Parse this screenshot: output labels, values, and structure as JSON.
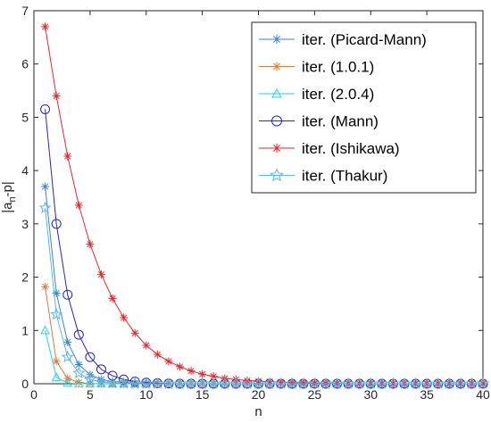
{
  "chart_data": {
    "type": "line",
    "xlabel": "n",
    "ylabel_main": "|a",
    "ylabel_sub": "n",
    "ylabel_tail": "-p|",
    "xlim": [
      0,
      40
    ],
    "ylim": [
      0,
      7
    ],
    "xticks": [
      0,
      5,
      10,
      15,
      20,
      25,
      30,
      35,
      40
    ],
    "yticks": [
      0,
      1,
      2,
      3,
      4,
      5,
      6,
      7
    ],
    "grid": false,
    "legend_position": "top-right",
    "series": [
      {
        "name": "iter. (Picard-Mann)",
        "color": "#3a87c8",
        "marker": "asterisk",
        "x": [
          1,
          2,
          3,
          4,
          5,
          6,
          7,
          8,
          9,
          10,
          11,
          12,
          13,
          14,
          15,
          16,
          17,
          18,
          19,
          20,
          21,
          22,
          23,
          24,
          25,
          26,
          27,
          28,
          29,
          30,
          31,
          32,
          33,
          34,
          35,
          36,
          37,
          38,
          39,
          40
        ],
        "y": [
          3.7,
          1.7,
          0.78,
          0.36,
          0.17,
          0.08,
          0.04,
          0.02,
          0.01,
          0.005,
          0,
          0,
          0,
          0,
          0,
          0,
          0,
          0,
          0,
          0,
          0,
          0,
          0,
          0,
          0,
          0,
          0,
          0,
          0,
          0,
          0,
          0,
          0,
          0,
          0,
          0,
          0,
          0,
          0,
          0
        ]
      },
      {
        "name": "iter. (1.0.1)",
        "color": "#e07b39",
        "marker": "asterisk",
        "x": [
          1,
          2,
          3,
          4,
          5,
          6,
          7,
          8,
          9,
          10,
          11,
          12,
          13,
          14,
          15,
          16,
          17,
          18,
          19,
          20,
          21,
          22,
          23,
          24,
          25,
          26,
          27,
          28,
          29,
          30,
          31,
          32,
          33,
          34,
          35,
          36,
          37,
          38,
          39,
          40
        ],
        "y": [
          1.82,
          0.42,
          0.1,
          0.025,
          0.006,
          0,
          0,
          0,
          0,
          0,
          0,
          0,
          0,
          0,
          0,
          0,
          0,
          0,
          0,
          0,
          0,
          0,
          0,
          0,
          0,
          0,
          0,
          0,
          0,
          0,
          0,
          0,
          0,
          0,
          0,
          0,
          0,
          0,
          0,
          0
        ]
      },
      {
        "name": "iter. (2.0.4)",
        "color": "#22d3e6",
        "marker": "triangle",
        "x": [
          1,
          2,
          3,
          4,
          5,
          6,
          7,
          8,
          9,
          10,
          11,
          12,
          13,
          14,
          15,
          16,
          17,
          18,
          19,
          20,
          21,
          22,
          23,
          24,
          25,
          26,
          27,
          28,
          29,
          30,
          31,
          32,
          33,
          34,
          35,
          36,
          37,
          38,
          39,
          40
        ],
        "y": [
          1.0,
          0.12,
          0.015,
          0,
          0,
          0,
          0,
          0,
          0,
          0,
          0,
          0,
          0,
          0,
          0,
          0,
          0,
          0,
          0,
          0,
          0,
          0,
          0,
          0,
          0,
          0,
          0,
          0,
          0,
          0,
          0,
          0,
          0,
          0,
          0,
          0,
          0,
          0,
          0,
          0
        ]
      },
      {
        "name": "iter. (Mann)",
        "color": "#2424c8",
        "marker": "circle",
        "x": [
          1,
          2,
          3,
          4,
          5,
          6,
          7,
          8,
          9,
          10,
          11,
          12,
          13,
          14,
          15,
          16,
          17,
          18,
          19,
          20,
          21,
          22,
          23,
          24,
          25,
          26,
          27,
          28,
          29,
          30,
          31,
          32,
          33,
          34,
          35,
          36,
          37,
          38,
          39,
          40
        ],
        "y": [
          5.15,
          3.0,
          1.67,
          0.92,
          0.5,
          0.27,
          0.15,
          0.08,
          0.04,
          0.02,
          0.01,
          0.005,
          0,
          0,
          0,
          0,
          0,
          0,
          0,
          0,
          0,
          0,
          0,
          0,
          0,
          0,
          0,
          0,
          0,
          0,
          0,
          0,
          0,
          0,
          0,
          0,
          0,
          0,
          0,
          0
        ]
      },
      {
        "name": "iter. (Ishikawa)",
        "color": "#e8262e",
        "marker": "asterisk",
        "x": [
          1,
          2,
          3,
          4,
          5,
          6,
          7,
          8,
          9,
          10,
          11,
          12,
          13,
          14,
          15,
          16,
          17,
          18,
          19,
          20,
          21,
          22,
          23,
          24,
          25,
          26,
          27,
          28,
          29,
          30,
          31,
          32,
          33,
          34,
          35,
          36,
          37,
          38,
          39,
          40
        ],
        "y": [
          6.7,
          5.4,
          4.27,
          3.35,
          2.62,
          2.05,
          1.6,
          1.24,
          0.95,
          0.72,
          0.55,
          0.42,
          0.32,
          0.24,
          0.18,
          0.14,
          0.1,
          0.08,
          0.06,
          0.05,
          0.04,
          0.03,
          0.02,
          0.015,
          0.01,
          0.01,
          0.005,
          0,
          0,
          0,
          0,
          0,
          0,
          0,
          0,
          0,
          0,
          0,
          0,
          0
        ]
      },
      {
        "name": "iter. (Thakur)",
        "color": "#5bb5e8",
        "marker": "star",
        "x": [
          1,
          2,
          3,
          4,
          5,
          6,
          7,
          8,
          9,
          10,
          11,
          12,
          13,
          14,
          15,
          16,
          17,
          18,
          19,
          20,
          21,
          22,
          23,
          24,
          25,
          26,
          27,
          28,
          29,
          30,
          31,
          32,
          33,
          34,
          35,
          36,
          37,
          38,
          39,
          40
        ],
        "y": [
          3.3,
          1.3,
          0.5,
          0.2,
          0.08,
          0.03,
          0.012,
          0.005,
          0,
          0,
          0,
          0,
          0,
          0,
          0,
          0,
          0,
          0,
          0,
          0,
          0,
          0,
          0,
          0,
          0,
          0,
          0,
          0,
          0,
          0,
          0,
          0,
          0,
          0,
          0,
          0,
          0,
          0,
          0,
          0
        ]
      }
    ]
  }
}
